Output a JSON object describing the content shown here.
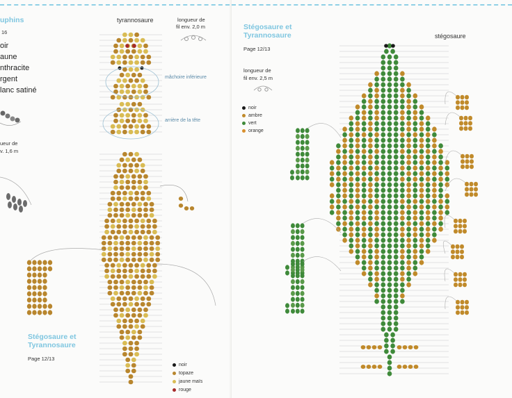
{
  "left_page": {
    "top_title": "uphins",
    "page_num": "16",
    "color_list": [
      "oir",
      "aune",
      "nthracite",
      "rgent",
      "lanc satiné"
    ],
    "length_note": [
      "ueur de",
      "v. 1,6 m"
    ],
    "figure_title": "tyrannosaure",
    "wire_length": [
      "longueur de",
      "fil env. 2,0 m"
    ],
    "jaw_label": "mâchoire inférieure",
    "head_label": "arrière de la tête",
    "bottom_title": [
      "Stégosaure et",
      "Tyrannosaure"
    ],
    "page_ref": "Page 12/13",
    "legend": [
      {
        "label": "noir",
        "color": "#1a1a1a"
      },
      {
        "label": "topaze",
        "color": "#b8862e"
      },
      {
        "label": "jaune maïs",
        "color": "#d9bc54"
      },
      {
        "label": "rouge",
        "color": "#a52a2a"
      }
    ]
  },
  "right_page": {
    "top_title": [
      "Stégosaure et",
      "Tyrannosaure"
    ],
    "page_ref": "Page 12/13",
    "wire_length": [
      "longueur de",
      "fil env. 2,5 m"
    ],
    "figure_title": "stégosaure",
    "legend": [
      {
        "label": "noir",
        "color": "#1a1a1a"
      },
      {
        "label": "ambre",
        "color": "#c08a2a"
      },
      {
        "label": "vert",
        "color": "#3f8a3a"
      },
      {
        "label": "orange",
        "color": "#d9902e"
      }
    ]
  }
}
